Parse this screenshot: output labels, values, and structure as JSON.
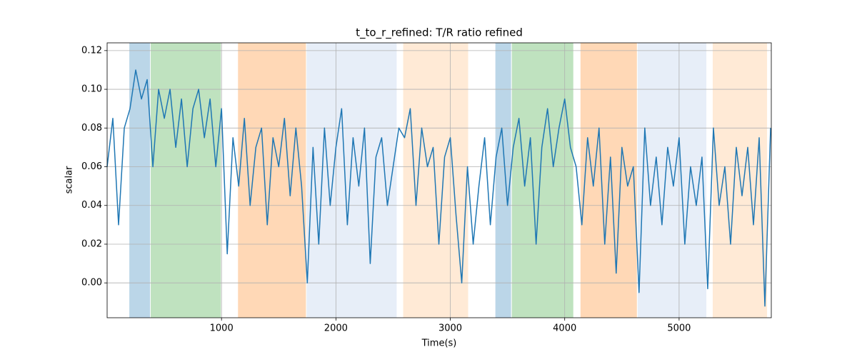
{
  "chart_data": {
    "type": "line",
    "title": "t_to_r_refined: T/R ratio refined",
    "xlabel": "Time(s)",
    "ylabel": "scalar",
    "color": "#1f77b4",
    "grid": true,
    "xlim": [
      0,
      5806
    ],
    "ylim": [
      -0.018,
      0.124
    ],
    "xticks": [
      1000,
      2000,
      3000,
      4000,
      5000
    ],
    "yticks": [
      {
        "value": 0,
        "label": "0.00"
      },
      {
        "value": 0.02,
        "label": "0.02"
      },
      {
        "value": 0.04,
        "label": "0.04"
      },
      {
        "value": 0.06,
        "label": "0.06"
      },
      {
        "value": 0.08,
        "label": "0.08"
      },
      {
        "value": 0.1,
        "label": "0.10"
      },
      {
        "value": 0.12,
        "label": "0.12"
      }
    ],
    "spans": [
      {
        "start": 194,
        "end": 375,
        "color": "#1f77b4"
      },
      {
        "start": 381,
        "end": 994,
        "color": "#2ca02c"
      },
      {
        "start": 1144,
        "end": 1738,
        "color": "#ff7f0e"
      },
      {
        "start": 1744,
        "end": 2531,
        "color": "#aec7e8"
      },
      {
        "start": 2588,
        "end": 3156,
        "color": "#ffbb78"
      },
      {
        "start": 3394,
        "end": 3531,
        "color": "#1f77b4"
      },
      {
        "start": 3538,
        "end": 4075,
        "color": "#2ca02c"
      },
      {
        "start": 4138,
        "end": 4631,
        "color": "#ff7f0e"
      },
      {
        "start": 4638,
        "end": 5238,
        "color": "#aec7e8"
      },
      {
        "start": 5294,
        "end": 5769,
        "color": "#ffbb78"
      }
    ],
    "x": [
      0,
      50,
      100,
      150,
      200,
      250,
      300,
      350,
      400,
      450,
      500,
      550,
      600,
      650,
      700,
      750,
      800,
      850,
      900,
      950,
      1000,
      1050,
      1100,
      1150,
      1200,
      1250,
      1300,
      1350,
      1400,
      1450,
      1500,
      1550,
      1600,
      1650,
      1700,
      1750,
      1800,
      1850,
      1900,
      1950,
      2000,
      2050,
      2100,
      2150,
      2200,
      2250,
      2300,
      2350,
      2400,
      2450,
      2500,
      2550,
      2600,
      2650,
      2700,
      2750,
      2800,
      2850,
      2900,
      2950,
      3000,
      3050,
      3100,
      3150,
      3200,
      3250,
      3300,
      3350,
      3400,
      3450,
      3500,
      3550,
      3600,
      3650,
      3700,
      3750,
      3800,
      3850,
      3900,
      3950,
      4000,
      4050,
      4100,
      4150,
      4200,
      4250,
      4300,
      4350,
      4400,
      4450,
      4500,
      4550,
      4600,
      4650,
      4700,
      4750,
      4800,
      4850,
      4900,
      4950,
      5000,
      5050,
      5100,
      5150,
      5200,
      5250,
      5300,
      5350,
      5400,
      5450,
      5500,
      5550,
      5600,
      5650,
      5700,
      5750,
      5800
    ],
    "values": [
      0.06,
      0.085,
      0.03,
      0.08,
      0.09,
      0.11,
      0.095,
      0.105,
      0.06,
      0.1,
      0.085,
      0.1,
      0.07,
      0.095,
      0.06,
      0.09,
      0.1,
      0.075,
      0.095,
      0.06,
      0.09,
      0.015,
      0.075,
      0.05,
      0.085,
      0.04,
      0.07,
      0.08,
      0.03,
      0.075,
      0.06,
      0.085,
      0.045,
      0.08,
      0.05,
      0.0,
      0.07,
      0.02,
      0.08,
      0.04,
      0.07,
      0.09,
      0.03,
      0.075,
      0.05,
      0.08,
      0.01,
      0.065,
      0.075,
      0.04,
      0.06,
      0.08,
      0.075,
      0.09,
      0.04,
      0.08,
      0.06,
      0.07,
      0.02,
      0.065,
      0.075,
      0.035,
      0.0,
      0.06,
      0.02,
      0.05,
      0.075,
      0.03,
      0.065,
      0.08,
      0.04,
      0.07,
      0.085,
      0.05,
      0.075,
      0.02,
      0.07,
      0.09,
      0.06,
      0.08,
      0.095,
      0.07,
      0.06,
      0.03,
      0.075,
      0.05,
      0.08,
      0.02,
      0.065,
      0.005,
      0.07,
      0.05,
      0.06,
      -0.005,
      0.08,
      0.04,
      0.065,
      0.03,
      0.07,
      0.05,
      0.075,
      0.02,
      0.06,
      0.04,
      0.065,
      -0.003,
      0.08,
      0.04,
      0.06,
      0.02,
      0.07,
      0.045,
      0.07,
      0.03,
      0.075,
      -0.012,
      0.08
    ]
  }
}
